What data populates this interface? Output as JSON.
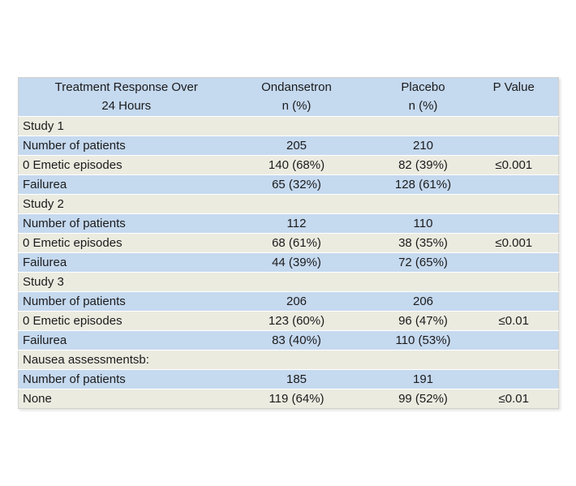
{
  "table": {
    "header": {
      "treatment_line1": "Treatment Response Over",
      "treatment_line2": "24 Hours",
      "ondansetron_line1": "Ondansetron",
      "ondansetron_line2": "n (%)",
      "placebo_line1": "Placebo",
      "placebo_line2": "n (%)",
      "p_value": "P Value"
    },
    "rows": [
      {
        "label": "Study 1",
        "ondansetron": "",
        "placebo": "",
        "p": ""
      },
      {
        "label": "Number of patients",
        "ondansetron": "205",
        "placebo": "210",
        "p": ""
      },
      {
        "label": "0 Emetic episodes",
        "ondansetron": "140 (68%)",
        "placebo": "82 (39%)",
        "p": "≤0.001"
      },
      {
        "label": "Failurea",
        "ondansetron": "65 (32%)",
        "placebo": "128 (61%)",
        "p": ""
      },
      {
        "label": "Study 2",
        "ondansetron": "",
        "placebo": "",
        "p": ""
      },
      {
        "label": "Number of patients",
        "ondansetron": "112",
        "placebo": "110",
        "p": ""
      },
      {
        "label": "0 Emetic episodes",
        "ondansetron": "68 (61%)",
        "placebo": "38 (35%)",
        "p": "≤0.001"
      },
      {
        "label": "Failurea",
        "ondansetron": "44 (39%)",
        "placebo": "72 (65%)",
        "p": ""
      },
      {
        "label": "Study 3",
        "ondansetron": "",
        "placebo": "",
        "p": ""
      },
      {
        "label": "Number of patients",
        "ondansetron": "206",
        "placebo": "206",
        "p": ""
      },
      {
        "label": "0 Emetic episodes",
        "ondansetron": "123 (60%)",
        "placebo": "96 (47%)",
        "p": "≤0.01"
      },
      {
        "label": "Failurea",
        "ondansetron": "83 (40%)",
        "placebo": "110 (53%)",
        "p": ""
      },
      {
        "label": "Nausea assessmentsb:",
        "ondansetron": "",
        "placebo": "",
        "p": ""
      },
      {
        "label": "Number of patients",
        "ondansetron": "185",
        "placebo": "191",
        "p": ""
      },
      {
        "label": "None",
        "ondansetron": "119 (64%)",
        "placebo": "99 (52%)",
        "p": "≤0.01"
      }
    ],
    "colors": {
      "row_blue": "#c5d9ef",
      "row_cream": "#ecebe0",
      "row_separator": "#ffffff",
      "outer_border": "#d2d2cd",
      "text": "#1b1b1b",
      "page_background": "#ffffff"
    }
  }
}
